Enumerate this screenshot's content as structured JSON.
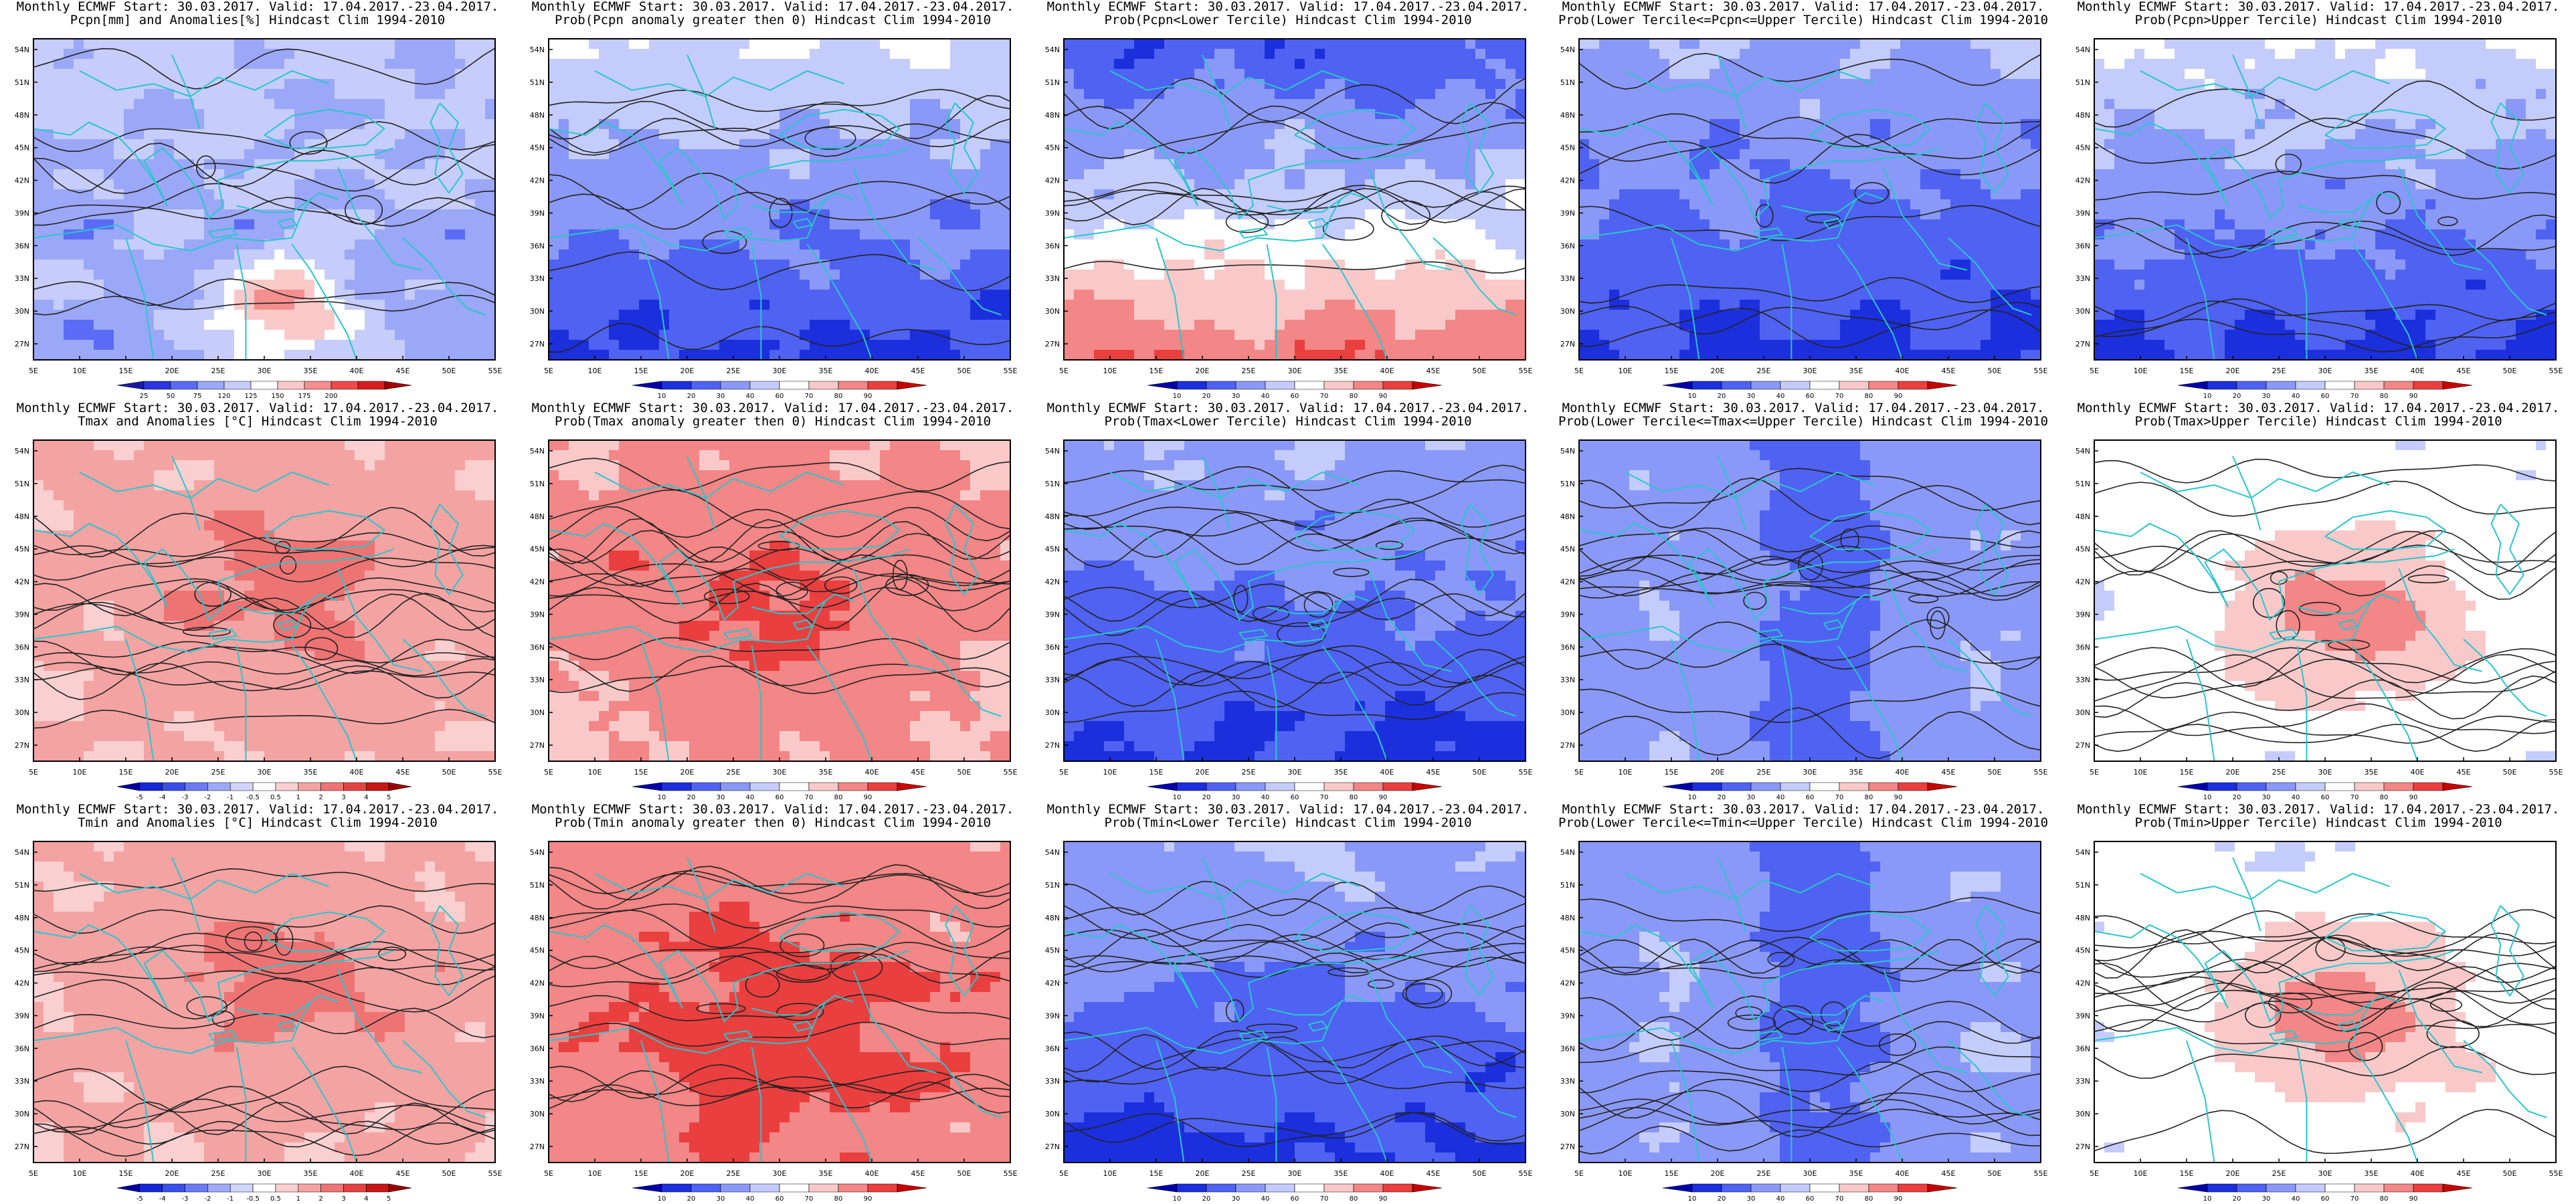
{
  "common": {
    "header": "Monthly ECMWF Start: 30.03.2017. Valid: 17.04.2017.-23.04.2017.",
    "lat_labels": [
      "54N",
      "51N",
      "48N",
      "45N",
      "42N",
      "39N",
      "36N",
      "33N",
      "30N",
      "27N"
    ],
    "lon_labels": [
      "5E",
      "10E",
      "15E",
      "20E",
      "25E",
      "30E",
      "35E",
      "40E",
      "45E",
      "50E",
      "55E"
    ]
  },
  "colors": {
    "coast": "#29c6cc",
    "contour": "#222222",
    "map_border": "#000000"
  },
  "colorbars": {
    "pcpn_anom": {
      "ticks": [
        "25",
        "50",
        "75",
        "120",
        "125",
        "150",
        "175",
        "200"
      ],
      "colors": [
        "#1a1aa0",
        "#2b35e0",
        "#5a6cf5",
        "#9ba8f8",
        "#c6cdfb",
        "#ffffff",
        "#f9c9c9",
        "#f58e8e",
        "#ee4a4a",
        "#d81e1e",
        "#a00000"
      ]
    },
    "prob": {
      "ticks": [
        "10",
        "20",
        "30",
        "40",
        "60",
        "70",
        "80",
        "90"
      ],
      "colors": [
        "#0000aa",
        "#1c2fdc",
        "#4f62f2",
        "#8a99f7",
        "#c4ccfb",
        "#ffffff",
        "#f9c9c9",
        "#f38686",
        "#ea3f3f",
        "#c80000"
      ]
    },
    "temp_anom": {
      "ticks": [
        "-5",
        "-4",
        "-3",
        "-2",
        "-1",
        "-0.5",
        "0.5",
        "1",
        "2",
        "3",
        "4",
        "5"
      ],
      "colors": [
        "#0000a0",
        "#1427d4",
        "#3a4ee9",
        "#6b7cf3",
        "#9eaaf8",
        "#cfd5fc",
        "#ffffff",
        "#f9cfcf",
        "#f4a3a3",
        "#ee7474",
        "#e24444",
        "#c81616",
        "#9a0000"
      ]
    }
  },
  "panels": [
    {
      "title2": "Pcpn[mm] and Anomalies[%] Hindcast Clim 1994-2010",
      "colorbar": "pcpn_anom",
      "theme": "mix_pcpn"
    },
    {
      "title2": "Prob(Pcpn anomaly greater then 0) Hindcast Clim 1994-2010",
      "colorbar": "prob",
      "theme": "blue_s"
    },
    {
      "title2": "Prob(Pcpn<Lower Tercile) Hindcast Clim 1994-2010",
      "colorbar": "prob",
      "theme": "mix_red_s"
    },
    {
      "title2": "Prob(Lower Tercile<=Pcpn<=Upper Tercile) Hindcast Clim 1994-2010",
      "colorbar": "prob",
      "theme": "blue_deep"
    },
    {
      "title2": "Prob(Pcpn>Upper Tercile) Hindcast Clim 1994-2010",
      "colorbar": "prob",
      "theme": "blue_s"
    },
    {
      "title2": "Tmax and Anomalies [°C] Hindcast Clim 1994-2010",
      "colorbar": "temp_anom",
      "theme": "red_light"
    },
    {
      "title2": "Prob(Tmax anomaly greater then 0) Hindcast Clim 1994-2010",
      "colorbar": "prob",
      "theme": "red_mid"
    },
    {
      "title2": "Prob(Tmax<Lower Tercile) Hindcast Clim 1994-2010",
      "colorbar": "prob",
      "theme": "blue_deep"
    },
    {
      "title2": "Prob(Lower Tercile<=Tmax<=Upper Tercile) Hindcast Clim 1994-2010",
      "colorbar": "prob",
      "theme": "blue_mid"
    },
    {
      "title2": "Prob(Tmax>Upper Tercile) Hindcast Clim 1994-2010",
      "colorbar": "prob",
      "theme": "red_center"
    },
    {
      "title2": "Tmin and Anomalies [°C] Hindcast Clim 1994-2010",
      "colorbar": "temp_anom",
      "theme": "red_light"
    },
    {
      "title2": "Prob(Tmin anomaly greater then 0) Hindcast Clim 1994-2010",
      "colorbar": "prob",
      "theme": "red_strong"
    },
    {
      "title2": "Prob(Tmin<Lower Tercile) Hindcast Clim 1994-2010",
      "colorbar": "prob",
      "theme": "blue_deep"
    },
    {
      "title2": "Prob(Lower Tercile<=Tmin<=Upper Tercile) Hindcast Clim 1994-2010",
      "colorbar": "prob",
      "theme": "blue_mid"
    },
    {
      "title2": "Prob(Tmin>Upper Tercile) Hindcast Clim 1994-2010",
      "colorbar": "prob",
      "theme": "red_center"
    }
  ]
}
